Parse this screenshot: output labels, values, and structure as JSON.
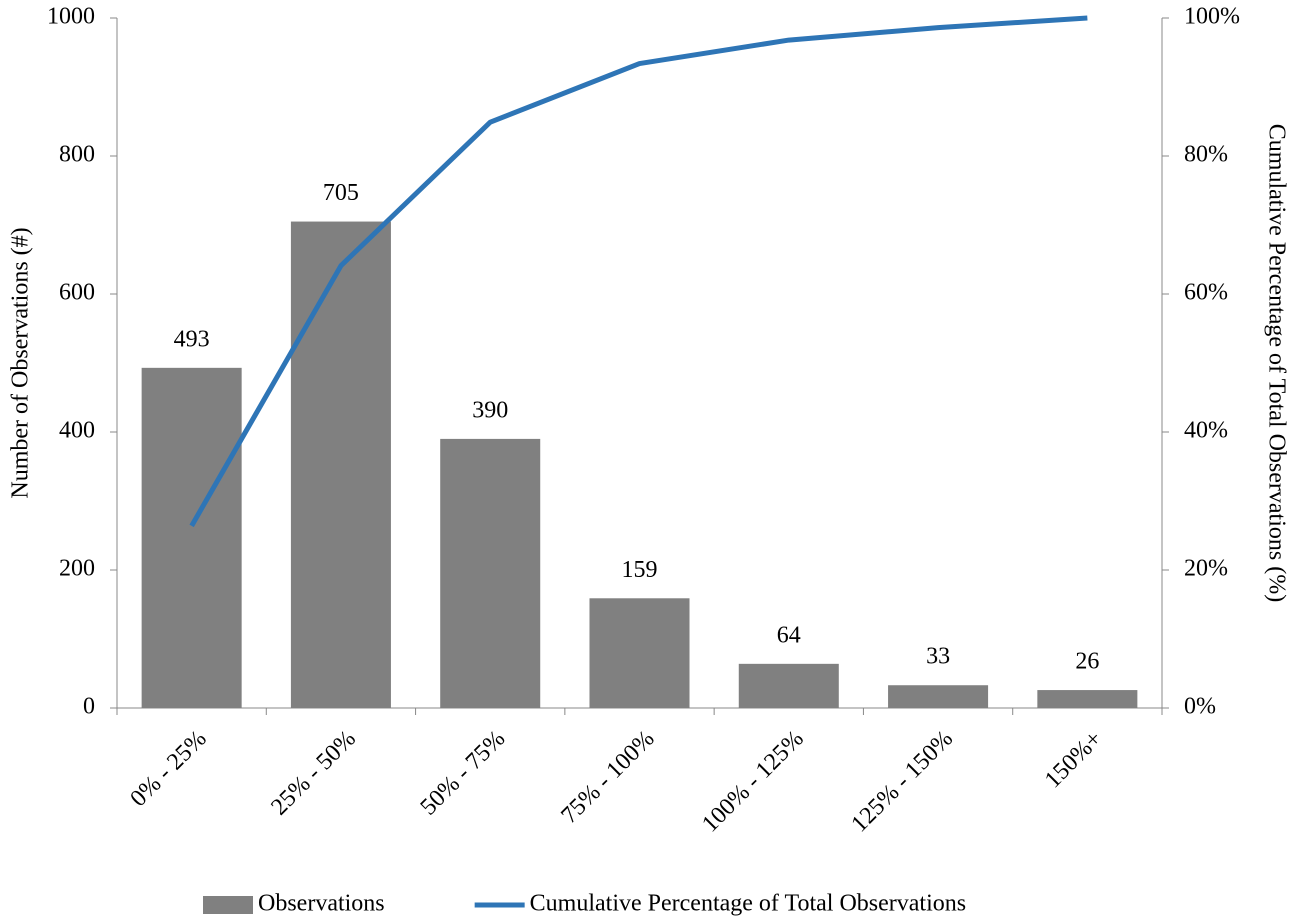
{
  "chart_data": {
    "type": "bar",
    "categories": [
      "0% - 25%",
      "25% - 50%",
      "50% - 75%",
      "75% - 100%",
      "100% - 125%",
      "125% - 150%",
      "150%+"
    ],
    "series": [
      {
        "name": "Observations",
        "type": "bar",
        "color": "#808080",
        "values": [
          493,
          705,
          390,
          159,
          64,
          33,
          26
        ]
      },
      {
        "name": "Cumulative Percentage of Total Observations",
        "type": "line",
        "axis": "y2",
        "color": "#2e75b6",
        "values": [
          26.4,
          64.1,
          84.9,
          93.4,
          96.8,
          98.6,
          100
        ]
      }
    ],
    "y_label": "Number of Observations (#)",
    "y2_label": "Cumulative Percentage of Total Observations (%)",
    "ylim": [
      0,
      1000
    ],
    "yticks": [
      0,
      200,
      400,
      600,
      800,
      1000
    ],
    "y2lim": [
      0,
      100
    ],
    "y2ticks": [
      {
        "value": 0,
        "label": "0%"
      },
      {
        "value": 20,
        "label": "20%"
      },
      {
        "value": 40,
        "label": "40%"
      },
      {
        "value": 60,
        "label": "60%"
      },
      {
        "value": 80,
        "label": "80%"
      },
      {
        "value": 100,
        "label": "100%"
      }
    ],
    "legend": "bottom"
  }
}
